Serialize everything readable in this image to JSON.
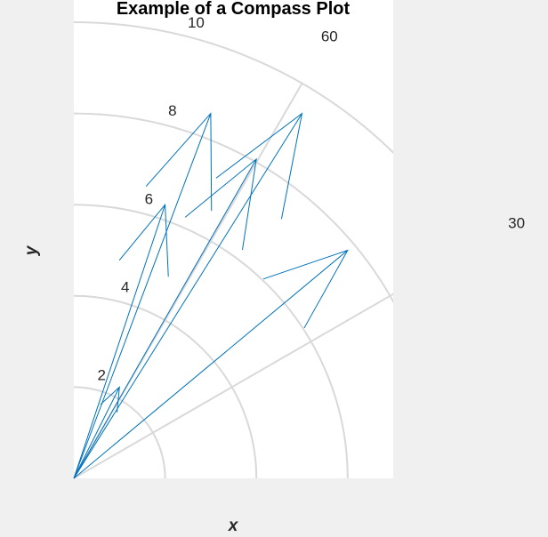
{
  "chart_data": {
    "type": "compass",
    "title": "Example of a Compass Plot",
    "xlabel": "x",
    "ylabel": "y",
    "rlim": [
      0,
      10
    ],
    "radial_ticks": [
      2,
      4,
      6,
      8,
      10
    ],
    "radial_tick_labels": [
      "2",
      "4",
      "6",
      "8",
      "10"
    ],
    "angle_ticks": [
      30,
      60
    ],
    "angle_tick_labels": [
      "30",
      "60"
    ],
    "grid": true,
    "color": "#0072bd",
    "vectors": [
      {
        "x": 1.0,
        "y": 2.0
      },
      {
        "x": 2.0,
        "y": 6.0
      },
      {
        "x": 3.0,
        "y": 8.0
      },
      {
        "x": 4.0,
        "y": 7.0
      },
      {
        "x": 5.0,
        "y": 8.0
      },
      {
        "x": 6.0,
        "y": 5.0
      }
    ]
  }
}
